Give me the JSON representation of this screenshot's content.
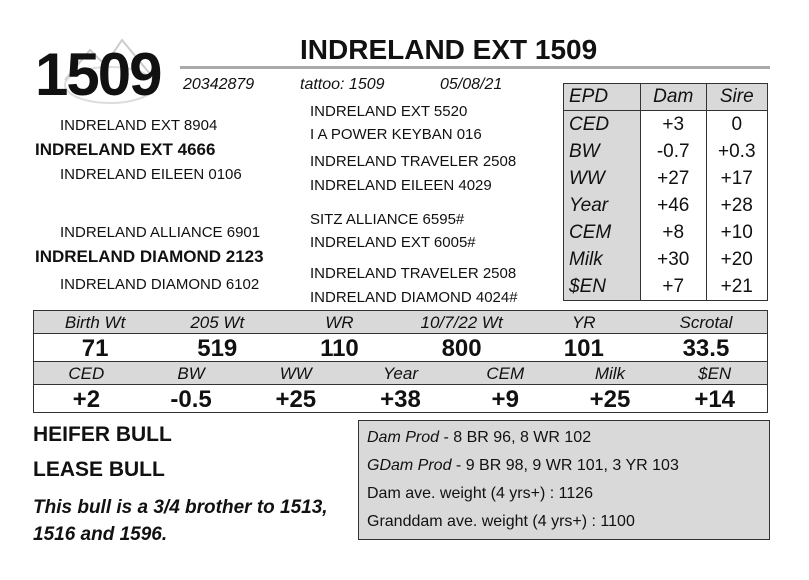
{
  "header": {
    "lot": "1509",
    "name": "INDRELAND EXT 1509",
    "registration": "20342879",
    "tattoo": "tattoo: 1509",
    "birth_date": "05/08/21"
  },
  "pedigree": {
    "sire": "INDRELAND EXT 4666",
    "sire_sire": "INDRELAND EXT 8904",
    "sire_dam": "INDRELAND EILEEN 0106",
    "sire_sire_sire": "INDRELAND EXT 5520",
    "sire_sire_dam": "I A POWER KEYBAN 016",
    "sire_dam_sire": "INDRELAND TRAVELER 2508",
    "sire_dam_dam": "INDRELAND EILEEN 4029",
    "dam": "INDRELAND DIAMOND 2123",
    "dam_sire": "INDRELAND ALLIANCE 6901",
    "dam_dam": "INDRELAND DIAMOND 6102",
    "dam_sire_sire": "SITZ ALLIANCE 6595#",
    "dam_sire_dam": "INDRELAND EXT 6005#",
    "dam_dam_sire": "INDRELAND TRAVELER 2508",
    "dam_dam_dam": "INDRELAND DIAMOND 4024#"
  },
  "parent_epds": {
    "columns": [
      "EPD",
      "Dam",
      "Sire"
    ],
    "rows": [
      [
        "CED",
        "+3",
        "0"
      ],
      [
        "BW",
        "-0.7",
        "+0.3"
      ],
      [
        "WW",
        "+27",
        "+17"
      ],
      [
        "Year",
        "+46",
        "+28"
      ],
      [
        "CEM",
        "+8",
        "+10"
      ],
      [
        "Milk",
        "+30",
        "+20"
      ],
      [
        "$EN",
        "+7",
        "+21"
      ]
    ]
  },
  "performance": {
    "columns": [
      "Birth Wt",
      "205 Wt",
      "WR",
      "10/7/22 Wt",
      "YR",
      "Scrotal"
    ],
    "values": [
      71,
      519,
      110,
      800,
      101,
      33.5
    ]
  },
  "epds": {
    "columns": [
      "CED",
      "BW",
      "WW",
      "Year",
      "CEM",
      "Milk",
      "$EN"
    ],
    "values": [
      "+2",
      "-0.5",
      "+25",
      "+38",
      "+9",
      "+25",
      "+14"
    ]
  },
  "notes": {
    "lines": [
      "HEIFER BULL",
      "LEASE BULL"
    ],
    "comment": "This bull is a 3/4 brother to 1513, 1516 and 1596."
  },
  "dam_info": {
    "dam_prod_label": "Dam Prod",
    "dam_prod": "- 8 BR 96, 8 WR 102",
    "gdam_prod_label": "GDam Prod",
    "gdam_prod": "- 9 BR 98, 9 WR 101, 3 YR 103",
    "dam_weight": "Dam ave. weight (4 yrs+) : 1126",
    "granddam_weight": "Granddam ave. weight (4 yrs+) : 1100"
  }
}
